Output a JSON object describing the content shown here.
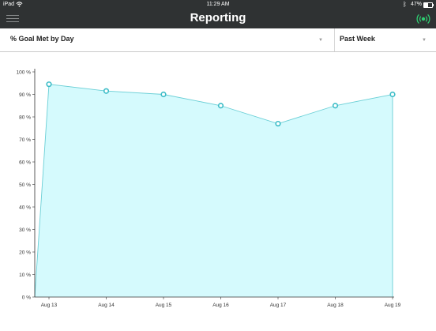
{
  "status_bar": {
    "device": "iPad",
    "time": "11:29 AM",
    "battery_percent": "47%",
    "battery_level": 0.47
  },
  "nav": {
    "title": "Reporting",
    "menu_icon": "hamburger-menu-icon",
    "live_icon": "broadcast-icon",
    "accent": "#2ecc71"
  },
  "filters": {
    "metric": "% Goal Met by Day",
    "range": "Past Week"
  },
  "chart_data": {
    "type": "area",
    "categories": [
      "Aug 13",
      "Aug 14",
      "Aug 15",
      "Aug 16",
      "Aug 17",
      "Aug 18",
      "Aug 19"
    ],
    "values": [
      94.5,
      91.5,
      90,
      85,
      77,
      85,
      90
    ],
    "y_ticks": [
      "0 %",
      "10 %",
      "20 %",
      "30 %",
      "40 %",
      "50 %",
      "60 %",
      "70 %",
      "80 %",
      "90 %",
      "100 %"
    ],
    "ylim": [
      0,
      100
    ],
    "grid": false,
    "colors": {
      "fill": "#d5fafd",
      "line": "#6bcfd6",
      "marker": "#3bbcc7"
    }
  }
}
